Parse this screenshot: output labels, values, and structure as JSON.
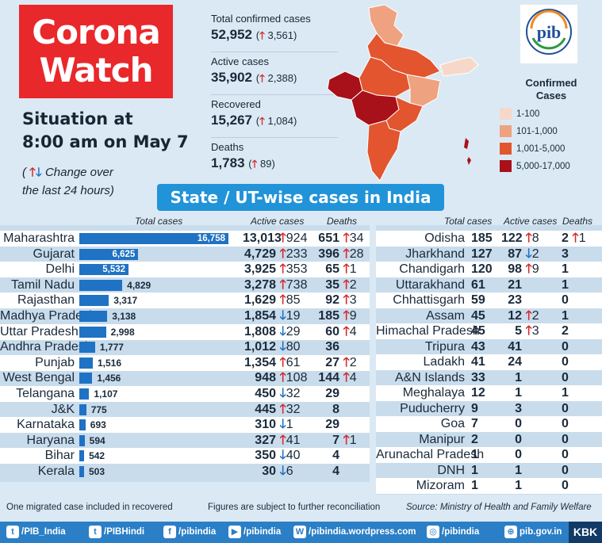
{
  "title": {
    "line1": "Corona",
    "line2": "Watch"
  },
  "situation": {
    "line1": "Situation at",
    "line2": "8:00 am on May 7"
  },
  "change_note": {
    "prefix": "( ",
    "text": " Change over",
    "line2": "the last 24 hours)"
  },
  "stats": [
    {
      "label": "Total confirmed cases",
      "value": "52,952",
      "delta": "3,561"
    },
    {
      "label": "Active cases",
      "value": "35,902",
      "delta": "2,388"
    },
    {
      "label": "Recovered",
      "value": "15,267",
      "delta": "1,084"
    },
    {
      "label": "Deaths",
      "value": "1,783",
      "delta": "89"
    }
  ],
  "logo": {
    "text": "pib"
  },
  "legend": {
    "title_line1": "Confirmed",
    "title_line2": "Cases",
    "items": [
      {
        "label": "1-100",
        "color": "#f6d8c9"
      },
      {
        "label": "101-1,000",
        "color": "#efa27f"
      },
      {
        "label": "1,001-5,000",
        "color": "#e2552e"
      },
      {
        "label": "5,000-17,000",
        "color": "#a8111a"
      }
    ]
  },
  "banner": "State / UT-wise cases in India",
  "left_headers": {
    "total": "Total cases",
    "active": "Active cases",
    "deaths": "Deaths"
  },
  "right_headers": {
    "total": "Total cases",
    "active": "Active cases",
    "deaths": "Deaths"
  },
  "left_rows": [
    {
      "state": "Maharashtra",
      "total": "16,758",
      "total_num": 16758,
      "active": "13,013",
      "a_dir": "up",
      "a_delta": "924",
      "deaths": "651",
      "d_dir": "up",
      "d_delta": "34"
    },
    {
      "state": "Gujarat",
      "total": "6,625",
      "total_num": 6625,
      "active": "4,729",
      "a_dir": "up",
      "a_delta": "233",
      "deaths": "396",
      "d_dir": "up",
      "d_delta": "28"
    },
    {
      "state": "Delhi",
      "total": "5,532",
      "total_num": 5532,
      "active": "3,925",
      "a_dir": "up",
      "a_delta": "353",
      "deaths": "65",
      "d_dir": "up",
      "d_delta": "1"
    },
    {
      "state": "Tamil Nadu",
      "total": "4,829",
      "total_num": 4829,
      "active": "3,278",
      "a_dir": "up",
      "a_delta": "738",
      "deaths": "35",
      "d_dir": "up",
      "d_delta": "2"
    },
    {
      "state": "Rajasthan",
      "total": "3,317",
      "total_num": 3317,
      "active": "1,629",
      "a_dir": "up",
      "a_delta": "85",
      "deaths": "92",
      "d_dir": "up",
      "d_delta": "3"
    },
    {
      "state": "Madhya Pradesh",
      "total": "3,138",
      "total_num": 3138,
      "active": "1,854",
      "a_dir": "down",
      "a_delta": "19",
      "deaths": "185",
      "d_dir": "up",
      "d_delta": "9"
    },
    {
      "state": "Uttar Pradesh",
      "total": "2,998",
      "total_num": 2998,
      "active": "1,808",
      "a_dir": "down",
      "a_delta": "29",
      "deaths": "60",
      "d_dir": "up",
      "d_delta": "4"
    },
    {
      "state": "Andhra Pradesh",
      "total": "1,777",
      "total_num": 1777,
      "active": "1,012",
      "a_dir": "down",
      "a_delta": "80",
      "deaths": "36",
      "d_dir": "",
      "d_delta": ""
    },
    {
      "state": "Punjab",
      "total": "1,516",
      "total_num": 1516,
      "active": "1,354",
      "a_dir": "up",
      "a_delta": "61",
      "deaths": "27",
      "d_dir": "up",
      "d_delta": "2"
    },
    {
      "state": "West Bengal",
      "total": "1,456",
      "total_num": 1456,
      "active": "948",
      "a_dir": "up",
      "a_delta": "108",
      "deaths": "144",
      "d_dir": "up",
      "d_delta": "4"
    },
    {
      "state": "Telangana",
      "total": "1,107",
      "total_num": 1107,
      "active": "450",
      "a_dir": "down",
      "a_delta": "32",
      "deaths": "29",
      "d_dir": "",
      "d_delta": ""
    },
    {
      "state": "J&K",
      "total": "775",
      "total_num": 775,
      "active": "445",
      "a_dir": "up",
      "a_delta": "32",
      "deaths": "8",
      "d_dir": "",
      "d_delta": ""
    },
    {
      "state": "Karnataka",
      "total": "693",
      "total_num": 693,
      "active": "310",
      "a_dir": "down",
      "a_delta": "1",
      "deaths": "29",
      "d_dir": "",
      "d_delta": ""
    },
    {
      "state": "Haryana",
      "total": "594",
      "total_num": 594,
      "active": "327",
      "a_dir": "up",
      "a_delta": "41",
      "deaths": "7",
      "d_dir": "up",
      "d_delta": "1"
    },
    {
      "state": "Bihar",
      "total": "542",
      "total_num": 542,
      "active": "350",
      "a_dir": "down",
      "a_delta": "40",
      "deaths": "4",
      "d_dir": "",
      "d_delta": ""
    },
    {
      "state": "Kerala",
      "total": "503",
      "total_num": 503,
      "active": "30",
      "a_dir": "down",
      "a_delta": "6",
      "deaths": "4",
      "d_dir": "",
      "d_delta": ""
    }
  ],
  "right_rows": [
    {
      "state": "Odisha",
      "total": "185",
      "active": "122",
      "a_dir": "up",
      "a_delta": "8",
      "deaths": "2",
      "d_dir": "up",
      "d_delta": "1"
    },
    {
      "state": "Jharkhand",
      "total": "127",
      "active": "87",
      "a_dir": "down",
      "a_delta": "2",
      "deaths": "3",
      "d_dir": "",
      "d_delta": ""
    },
    {
      "state": "Chandigarh",
      "total": "120",
      "active": "98",
      "a_dir": "up",
      "a_delta": "9",
      "deaths": "1",
      "d_dir": "",
      "d_delta": ""
    },
    {
      "state": "Uttarakhand",
      "total": "61",
      "active": "21",
      "a_dir": "",
      "a_delta": "",
      "deaths": "1",
      "d_dir": "",
      "d_delta": ""
    },
    {
      "state": "Chhattisgarh",
      "total": "59",
      "active": "23",
      "a_dir": "",
      "a_delta": "",
      "deaths": "0",
      "d_dir": "",
      "d_delta": ""
    },
    {
      "state": "Assam",
      "total": "45",
      "active": "12",
      "a_dir": "up",
      "a_delta": "2",
      "deaths": "1",
      "d_dir": "",
      "d_delta": ""
    },
    {
      "state": "Himachal Pradesh",
      "total": "45",
      "active": "5",
      "a_dir": "up",
      "a_delta": "3",
      "deaths": "2",
      "d_dir": "",
      "d_delta": ""
    },
    {
      "state": "Tripura",
      "total": "43",
      "active": "41",
      "a_dir": "",
      "a_delta": "",
      "deaths": "0",
      "d_dir": "",
      "d_delta": ""
    },
    {
      "state": "Ladakh",
      "total": "41",
      "active": "24",
      "a_dir": "",
      "a_delta": "",
      "deaths": "0",
      "d_dir": "",
      "d_delta": ""
    },
    {
      "state": "A&N Islands",
      "total": "33",
      "active": "1",
      "a_dir": "",
      "a_delta": "",
      "deaths": "0",
      "d_dir": "",
      "d_delta": ""
    },
    {
      "state": "Meghalaya",
      "total": "12",
      "active": "1",
      "a_dir": "",
      "a_delta": "",
      "deaths": "1",
      "d_dir": "",
      "d_delta": ""
    },
    {
      "state": "Puducherry",
      "total": "9",
      "active": "3",
      "a_dir": "",
      "a_delta": "",
      "deaths": "0",
      "d_dir": "",
      "d_delta": ""
    },
    {
      "state": "Goa",
      "total": "7",
      "active": "0",
      "a_dir": "",
      "a_delta": "",
      "deaths": "0",
      "d_dir": "",
      "d_delta": ""
    },
    {
      "state": "Manipur",
      "total": "2",
      "active": "0",
      "a_dir": "",
      "a_delta": "",
      "deaths": "0",
      "d_dir": "",
      "d_delta": ""
    },
    {
      "state": "Arunachal Pradesh",
      "total": "1",
      "active": "0",
      "a_dir": "",
      "a_delta": "",
      "deaths": "0",
      "d_dir": "",
      "d_delta": ""
    },
    {
      "state": "DNH",
      "total": "1",
      "active": "1",
      "a_dir": "",
      "a_delta": "",
      "deaths": "0",
      "d_dir": "",
      "d_delta": ""
    },
    {
      "state": "Mizoram",
      "total": "1",
      "active": "1",
      "a_dir": "",
      "a_delta": "",
      "deaths": "0",
      "d_dir": "",
      "d_delta": ""
    }
  ],
  "footnotes": {
    "migrated": "One migrated case included in recovered",
    "reconciliation": "Figures are subject to further reconciliation",
    "source": "Source: Ministry of Health and Family Welfare"
  },
  "social": [
    {
      "icon": "twitter-icon",
      "glyph": "t",
      "label": "/PIB_India"
    },
    {
      "icon": "twitter-icon",
      "glyph": "t",
      "label": "/PIBHindi"
    },
    {
      "icon": "facebook-icon",
      "glyph": "f",
      "label": "/pibindia"
    },
    {
      "icon": "youtube-icon",
      "glyph": "▶",
      "label": "/pibindia"
    },
    {
      "icon": "wordpress-icon",
      "glyph": "W",
      "label": "/pibindia.wordpress.com"
    },
    {
      "icon": "instagram-icon",
      "glyph": "◎",
      "label": "/pibindia"
    },
    {
      "icon": "globe-icon",
      "glyph": "⊕",
      "label": "pib.gov.in"
    }
  ],
  "brand": "KBK",
  "colors": {
    "accent_red": "#e8282b",
    "bar_blue": "#2193d8",
    "up": "#d42a2a",
    "down": "#1f72c4"
  }
}
